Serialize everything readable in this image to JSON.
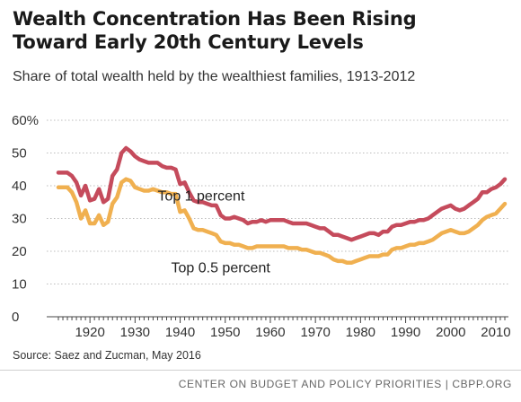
{
  "header": {
    "title_line1": "Wealth Concentration Has Been Rising",
    "title_line2": "Toward Early 20th Century Levels",
    "subtitle": "Share of total wealth held by the wealthiest families, 1913-2012"
  },
  "footer": {
    "source": "Source: Saez and Zucman, May 2016",
    "org": "CENTER ON BUDGET AND POLICY PRIORITIES | CBPP.ORG"
  },
  "colors": {
    "top1": "#c54b5c",
    "top05": "#f0b050",
    "grid": "#bdbdbd",
    "axis": "#444444"
  },
  "chart_data": {
    "type": "line",
    "title": "Wealth Concentration Has Been Rising Toward Early 20th Century Levels",
    "subtitle": "Share of total wealth held by the wealthiest families, 1913-2012",
    "xlabel": "",
    "ylabel": "",
    "xlim": [
      1913,
      2012
    ],
    "ylim": [
      0,
      60
    ],
    "grid": true,
    "legend": "none",
    "y_ticks": [
      "0",
      "10",
      "20",
      "30",
      "40",
      "50",
      "60%"
    ],
    "x_ticks": [
      "1920",
      "1930",
      "1940",
      "1950",
      "1960",
      "1970",
      "1980",
      "1990",
      "2000",
      "2010"
    ],
    "x_tick_values": [
      1920,
      1930,
      1940,
      1950,
      1960,
      1970,
      1980,
      1990,
      2000,
      2010
    ],
    "y_tick_values": [
      0,
      10,
      20,
      30,
      40,
      50,
      60
    ],
    "series": [
      {
        "name": "Top 1 percent",
        "color": "#c54b5c",
        "points": [
          [
            1913,
            44
          ],
          [
            1914,
            44
          ],
          [
            1915,
            44
          ],
          [
            1916,
            43
          ],
          [
            1917,
            41
          ],
          [
            1918,
            37
          ],
          [
            1919,
            40
          ],
          [
            1920,
            35.5
          ],
          [
            1921,
            36
          ],
          [
            1922,
            39
          ],
          [
            1923,
            35
          ],
          [
            1924,
            36
          ],
          [
            1925,
            43
          ],
          [
            1926,
            45
          ],
          [
            1927,
            50
          ],
          [
            1928,
            51.5
          ],
          [
            1929,
            50.5
          ],
          [
            1930,
            49
          ],
          [
            1931,
            48
          ],
          [
            1932,
            47.5
          ],
          [
            1933,
            47
          ],
          [
            1934,
            47
          ],
          [
            1935,
            47
          ],
          [
            1936,
            46
          ],
          [
            1937,
            45.5
          ],
          [
            1938,
            45.5
          ],
          [
            1939,
            45
          ],
          [
            1940,
            40.5
          ],
          [
            1941,
            41
          ],
          [
            1942,
            38
          ],
          [
            1943,
            35.5
          ],
          [
            1944,
            35
          ],
          [
            1945,
            35
          ],
          [
            1946,
            34.5
          ],
          [
            1947,
            34
          ],
          [
            1948,
            34
          ],
          [
            1949,
            31
          ],
          [
            1950,
            30
          ],
          [
            1951,
            30
          ],
          [
            1952,
            30.5
          ],
          [
            1953,
            30
          ],
          [
            1954,
            29.5
          ],
          [
            1955,
            28.5
          ],
          [
            1956,
            29
          ],
          [
            1957,
            29
          ],
          [
            1958,
            29.5
          ],
          [
            1959,
            29
          ],
          [
            1960,
            29.5
          ],
          [
            1961,
            29.5
          ],
          [
            1962,
            29.5
          ],
          [
            1963,
            29.5
          ],
          [
            1964,
            29
          ],
          [
            1965,
            28.5
          ],
          [
            1966,
            28.5
          ],
          [
            1967,
            28.5
          ],
          [
            1968,
            28.5
          ],
          [
            1969,
            28
          ],
          [
            1970,
            27.5
          ],
          [
            1971,
            27
          ],
          [
            1972,
            27
          ],
          [
            1973,
            26
          ],
          [
            1974,
            25
          ],
          [
            1975,
            25
          ],
          [
            1976,
            24.5
          ],
          [
            1977,
            24
          ],
          [
            1978,
            23.5
          ],
          [
            1979,
            24
          ],
          [
            1980,
            24.5
          ],
          [
            1981,
            25
          ],
          [
            1982,
            25.5
          ],
          [
            1983,
            25.5
          ],
          [
            1984,
            25
          ],
          [
            1985,
            26
          ],
          [
            1986,
            26
          ],
          [
            1987,
            27.5
          ],
          [
            1988,
            28
          ],
          [
            1989,
            28
          ],
          [
            1990,
            28.5
          ],
          [
            1991,
            29
          ],
          [
            1992,
            29
          ],
          [
            1993,
            29.5
          ],
          [
            1994,
            29.5
          ],
          [
            1995,
            30
          ],
          [
            1996,
            31
          ],
          [
            1997,
            32
          ],
          [
            1998,
            33
          ],
          [
            1999,
            33.5
          ],
          [
            2000,
            34
          ],
          [
            2001,
            33
          ],
          [
            2002,
            32.5
          ],
          [
            2003,
            33
          ],
          [
            2004,
            34
          ],
          [
            2005,
            35
          ],
          [
            2006,
            36
          ],
          [
            2007,
            38
          ],
          [
            2008,
            38
          ],
          [
            2009,
            39
          ],
          [
            2010,
            39.5
          ],
          [
            2011,
            40.5
          ],
          [
            2012,
            42
          ]
        ]
      },
      {
        "name": "Top 0.5 percent",
        "color": "#f0b050",
        "points": [
          [
            1913,
            39.5
          ],
          [
            1914,
            39.5
          ],
          [
            1915,
            39.5
          ],
          [
            1916,
            38
          ],
          [
            1917,
            35
          ],
          [
            1918,
            30
          ],
          [
            1919,
            32.5
          ],
          [
            1920,
            28.5
          ],
          [
            1921,
            28.5
          ],
          [
            1922,
            31
          ],
          [
            1923,
            28
          ],
          [
            1924,
            29
          ],
          [
            1925,
            34.5
          ],
          [
            1926,
            36.5
          ],
          [
            1927,
            41
          ],
          [
            1928,
            42
          ],
          [
            1929,
            41.5
          ],
          [
            1930,
            39.5
          ],
          [
            1931,
            39
          ],
          [
            1932,
            38.5
          ],
          [
            1933,
            38.5
          ],
          [
            1934,
            39
          ],
          [
            1935,
            38.5
          ],
          [
            1936,
            38
          ],
          [
            1937,
            38
          ],
          [
            1938,
            37.5
          ],
          [
            1939,
            37.5
          ],
          [
            1940,
            32
          ],
          [
            1941,
            32.5
          ],
          [
            1942,
            30
          ],
          [
            1943,
            27
          ],
          [
            1944,
            26.5
          ],
          [
            1945,
            26.5
          ],
          [
            1946,
            26
          ],
          [
            1947,
            25.5
          ],
          [
            1948,
            25
          ],
          [
            1949,
            23
          ],
          [
            1950,
            22.5
          ],
          [
            1951,
            22.5
          ],
          [
            1952,
            22
          ],
          [
            1953,
            22
          ],
          [
            1954,
            21.5
          ],
          [
            1955,
            21
          ],
          [
            1956,
            21
          ],
          [
            1957,
            21.5
          ],
          [
            1958,
            21.5
          ],
          [
            1959,
            21.5
          ],
          [
            1960,
            21.5
          ],
          [
            1961,
            21.5
          ],
          [
            1962,
            21.5
          ],
          [
            1963,
            21.5
          ],
          [
            1964,
            21
          ],
          [
            1965,
            21
          ],
          [
            1966,
            21
          ],
          [
            1967,
            20.5
          ],
          [
            1968,
            20.5
          ],
          [
            1969,
            20
          ],
          [
            1970,
            19.5
          ],
          [
            1971,
            19.5
          ],
          [
            1972,
            19
          ],
          [
            1973,
            18.5
          ],
          [
            1974,
            17.5
          ],
          [
            1975,
            17
          ],
          [
            1976,
            17
          ],
          [
            1977,
            16.5
          ],
          [
            1978,
            16.5
          ],
          [
            1979,
            17
          ],
          [
            1980,
            17.5
          ],
          [
            1981,
            18
          ],
          [
            1982,
            18.5
          ],
          [
            1983,
            18.5
          ],
          [
            1984,
            18.5
          ],
          [
            1985,
            19
          ],
          [
            1986,
            19
          ],
          [
            1987,
            20.5
          ],
          [
            1988,
            21
          ],
          [
            1989,
            21
          ],
          [
            1990,
            21.5
          ],
          [
            1991,
            22
          ],
          [
            1992,
            22
          ],
          [
            1993,
            22.5
          ],
          [
            1994,
            22.5
          ],
          [
            1995,
            23
          ],
          [
            1996,
            23.5
          ],
          [
            1997,
            24.5
          ],
          [
            1998,
            25.5
          ],
          [
            1999,
            26
          ],
          [
            2000,
            26.5
          ],
          [
            2001,
            26
          ],
          [
            2002,
            25.5
          ],
          [
            2003,
            25.5
          ],
          [
            2004,
            26
          ],
          [
            2005,
            27
          ],
          [
            2006,
            28
          ],
          [
            2007,
            29.5
          ],
          [
            2008,
            30.5
          ],
          [
            2009,
            31
          ],
          [
            2010,
            31.5
          ],
          [
            2011,
            33
          ],
          [
            2012,
            34.5
          ]
        ]
      }
    ],
    "annotations": [
      {
        "text": "Top 1 percent",
        "x": 1935,
        "y": 35.5,
        "series": "Top 1 percent"
      },
      {
        "text": "Top 0.5 percent",
        "x": 1938,
        "y": 13.5,
        "series": "Top 0.5 percent"
      }
    ]
  }
}
